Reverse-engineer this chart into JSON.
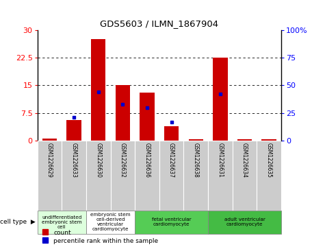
{
  "title": "GDS5603 / ILMN_1867904",
  "samples": [
    "GSM1226629",
    "GSM1226633",
    "GSM1226630",
    "GSM1226632",
    "GSM1226636",
    "GSM1226637",
    "GSM1226638",
    "GSM1226631",
    "GSM1226634",
    "GSM1226635"
  ],
  "counts": [
    0.5,
    5.5,
    27.5,
    15.0,
    13.0,
    4.0,
    0.3,
    22.5,
    0.3,
    0.3
  ],
  "percentiles": [
    0,
    21,
    44,
    33,
    30,
    17,
    0,
    42,
    0,
    0
  ],
  "ylim_left": [
    0,
    30
  ],
  "yticks_left": [
    0,
    7.5,
    15,
    22.5,
    30
  ],
  "yticks_right": [
    0,
    25,
    50,
    75,
    100
  ],
  "bar_color": "#cc0000",
  "percentile_color": "#0000cc",
  "cell_types": [
    {
      "label": "undifferentiated\nembryonic stem\ncell",
      "start": 0,
      "end": 2,
      "color": "#ddffdd"
    },
    {
      "label": "embryonic stem\ncell-derived\nventricular\ncardiomyocyte",
      "start": 2,
      "end": 4,
      "color": "#ffffff"
    },
    {
      "label": "fetal ventricular\ncardiomyocyte",
      "start": 4,
      "end": 7,
      "color": "#55cc55"
    },
    {
      "label": "adult ventricular\ncardiomyocyte",
      "start": 7,
      "end": 10,
      "color": "#44bb44"
    }
  ],
  "legend_count_label": "count",
  "legend_percentile_label": "percentile rank within the sample",
  "bg_color": "#ffffff",
  "sample_box_color": "#cccccc",
  "spine_color": "#000000"
}
